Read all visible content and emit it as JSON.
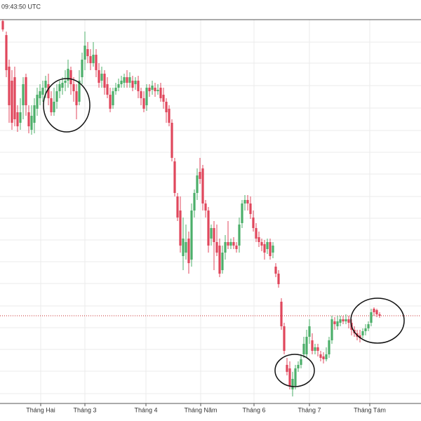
{
  "timestamp": "09:43:50 UTC",
  "chart_data": {
    "type": "candlestick",
    "x": [
      4,
      9,
      13,
      17,
      21,
      25,
      29,
      33,
      37,
      41,
      45,
      49,
      53,
      57,
      61,
      65,
      69,
      73,
      77,
      81,
      85,
      89,
      93,
      97,
      101,
      105,
      109,
      113,
      117,
      121,
      125,
      129,
      133,
      137,
      141,
      145,
      149,
      153,
      157,
      161,
      165,
      169,
      173,
      177,
      181,
      185,
      189,
      193,
      197,
      201,
      205,
      209,
      213,
      217,
      221,
      225,
      229,
      233,
      237,
      241,
      245,
      249,
      253,
      257,
      261,
      265,
      269,
      273,
      277,
      281,
      285,
      289,
      293,
      297,
      301,
      305,
      309,
      313,
      317,
      321,
      325,
      329,
      333,
      337,
      341,
      345,
      349,
      353,
      357,
      361,
      365,
      369,
      373,
      377,
      381,
      385,
      389,
      393,
      397,
      401,
      405,
      409,
      413,
      417,
      421,
      425,
      429,
      433,
      437,
      441,
      445,
      449,
      453,
      457,
      461,
      465,
      469,
      473,
      477,
      481,
      485,
      489,
      493,
      497,
      501,
      505,
      509,
      513,
      517,
      521,
      525,
      529,
      533,
      537,
      541
    ],
    "open": [
      570,
      550,
      505,
      485,
      490,
      440,
      425,
      450,
      490,
      440,
      415,
      425,
      445,
      460,
      465,
      475,
      480,
      460,
      440,
      455,
      470,
      475,
      482,
      485,
      500,
      480,
      470,
      455,
      490,
      515,
      530,
      520,
      510,
      522,
      500,
      485,
      495,
      480,
      465,
      450,
      470,
      475,
      480,
      482,
      490,
      482,
      485,
      480,
      485,
      470,
      460,
      450,
      475,
      472,
      475,
      470,
      475,
      465,
      455,
      445,
      425,
      370,
      320,
      300,
      235,
      240,
      260,
      230,
      300,
      325,
      355,
      360,
      310,
      300,
      260,
      275,
      255,
      250,
      215,
      240,
      255,
      250,
      255,
      250,
      250,
      282,
      310,
      315,
      310,
      290,
      275,
      262,
      255,
      252,
      245,
      255,
      240,
      220,
      210,
      170,
      135,
      80,
      75,
      45,
      50,
      75,
      80,
      95,
      95,
      120,
      115,
      100,
      105,
      95,
      92,
      88,
      95,
      115,
      142,
      135,
      140,
      145,
      142,
      145,
      140,
      130,
      125,
      122,
      122,
      128,
      132,
      140,
      160,
      158,
      152
    ],
    "high": [
      572,
      555,
      515,
      500,
      505,
      450,
      460,
      490,
      495,
      450,
      450,
      460,
      475,
      480,
      485,
      492,
      495,
      470,
      475,
      480,
      485,
      490,
      500,
      515,
      505,
      490,
      480,
      500,
      525,
      555,
      540,
      530,
      540,
      530,
      510,
      505,
      500,
      490,
      475,
      475,
      482,
      488,
      492,
      495,
      500,
      497,
      492,
      490,
      492,
      475,
      470,
      480,
      480,
      485,
      482,
      480,
      482,
      475,
      460,
      450,
      430,
      375,
      325,
      320,
      290,
      280,
      270,
      310,
      330,
      360,
      375,
      365,
      315,
      305,
      280,
      285,
      280,
      260,
      250,
      265,
      285,
      260,
      262,
      255,
      290,
      315,
      322,
      322,
      320,
      300,
      282,
      270,
      260,
      258,
      260,
      260,
      255,
      225,
      215,
      175,
      140,
      90,
      85,
      70,
      80,
      85,
      95,
      120,
      130,
      145,
      125,
      110,
      110,
      100,
      98,
      105,
      120,
      150,
      148,
      150,
      150,
      150,
      152,
      150,
      145,
      135,
      130,
      130,
      132,
      138,
      142,
      160,
      162,
      160,
      155
    ],
    "low": [
      555,
      490,
      425,
      415,
      420,
      412,
      415,
      430,
      435,
      410,
      408,
      410,
      435,
      450,
      455,
      460,
      450,
      435,
      435,
      445,
      460,
      465,
      470,
      475,
      465,
      455,
      430,
      450,
      480,
      500,
      510,
      500,
      505,
      490,
      475,
      475,
      465,
      460,
      440,
      445,
      465,
      470,
      475,
      475,
      475,
      475,
      470,
      472,
      460,
      450,
      440,
      442,
      462,
      465,
      462,
      465,
      455,
      445,
      425,
      420,
      370,
      320,
      285,
      240,
      215,
      230,
      210,
      220,
      290,
      315,
      338,
      300,
      290,
      240,
      250,
      215,
      235,
      205,
      210,
      230,
      245,
      245,
      245,
      240,
      240,
      275,
      300,
      300,
      288,
      270,
      255,
      248,
      242,
      230,
      238,
      230,
      232,
      205,
      190,
      130,
      95,
      65,
      45,
      35,
      45,
      70,
      75,
      90,
      90,
      110,
      95,
      95,
      92,
      85,
      82,
      85,
      90,
      110,
      130,
      130,
      135,
      138,
      138,
      132,
      122,
      120,
      115,
      112,
      118,
      122,
      128,
      135,
      150,
      148,
      147
    ],
    "close": [
      558,
      500,
      450,
      425,
      430,
      420,
      440,
      480,
      450,
      420,
      435,
      450,
      465,
      470,
      475,
      485,
      460,
      440,
      455,
      470,
      480,
      482,
      485,
      502,
      480,
      470,
      450,
      485,
      515,
      535,
      520,
      510,
      522,
      500,
      482,
      495,
      475,
      465,
      445,
      470,
      475,
      480,
      485,
      490,
      482,
      490,
      475,
      485,
      470,
      460,
      445,
      475,
      470,
      478,
      470,
      472,
      460,
      455,
      440,
      425,
      375,
      325,
      290,
      250,
      260,
      255,
      225,
      300,
      325,
      350,
      345,
      310,
      300,
      250,
      275,
      255,
      240,
      210,
      240,
      255,
      250,
      255,
      250,
      245,
      280,
      310,
      315,
      310,
      295,
      275,
      260,
      255,
      250,
      240,
      255,
      235,
      250,
      210,
      195,
      135,
      100,
      70,
      50,
      60,
      75,
      80,
      88,
      110,
      120,
      135,
      100,
      105,
      100,
      90,
      88,
      95,
      115,
      145,
      138,
      142,
      145,
      142,
      145,
      140,
      130,
      125,
      120,
      118,
      128,
      132,
      138,
      155,
      155,
      152,
      150
    ],
    "up_color": "#4caf6a",
    "down_color": "#e0475c",
    "xlim": [
      0,
      600
    ],
    "ylim": [
      25,
      572
    ],
    "xticks": [
      {
        "value": 58,
        "label": "Tháng Hai"
      },
      {
        "value": 121,
        "label": "Tháng 3"
      },
      {
        "value": 208,
        "label": "Tháng 4"
      },
      {
        "value": 286,
        "label": "Tháng Năm"
      },
      {
        "value": 362,
        "label": "Tháng 6"
      },
      {
        "value": 441,
        "label": "Tháng 7"
      },
      {
        "value": 527,
        "label": "Tháng Tám"
      }
    ],
    "ygrid": [
      540,
      510,
      478,
      446,
      414,
      383,
      352,
      320,
      289,
      258,
      227,
      196,
      164,
      133,
      102,
      71,
      39
    ],
    "grid": true,
    "last_price": 150,
    "last_price_color": "#c62828"
  }
}
